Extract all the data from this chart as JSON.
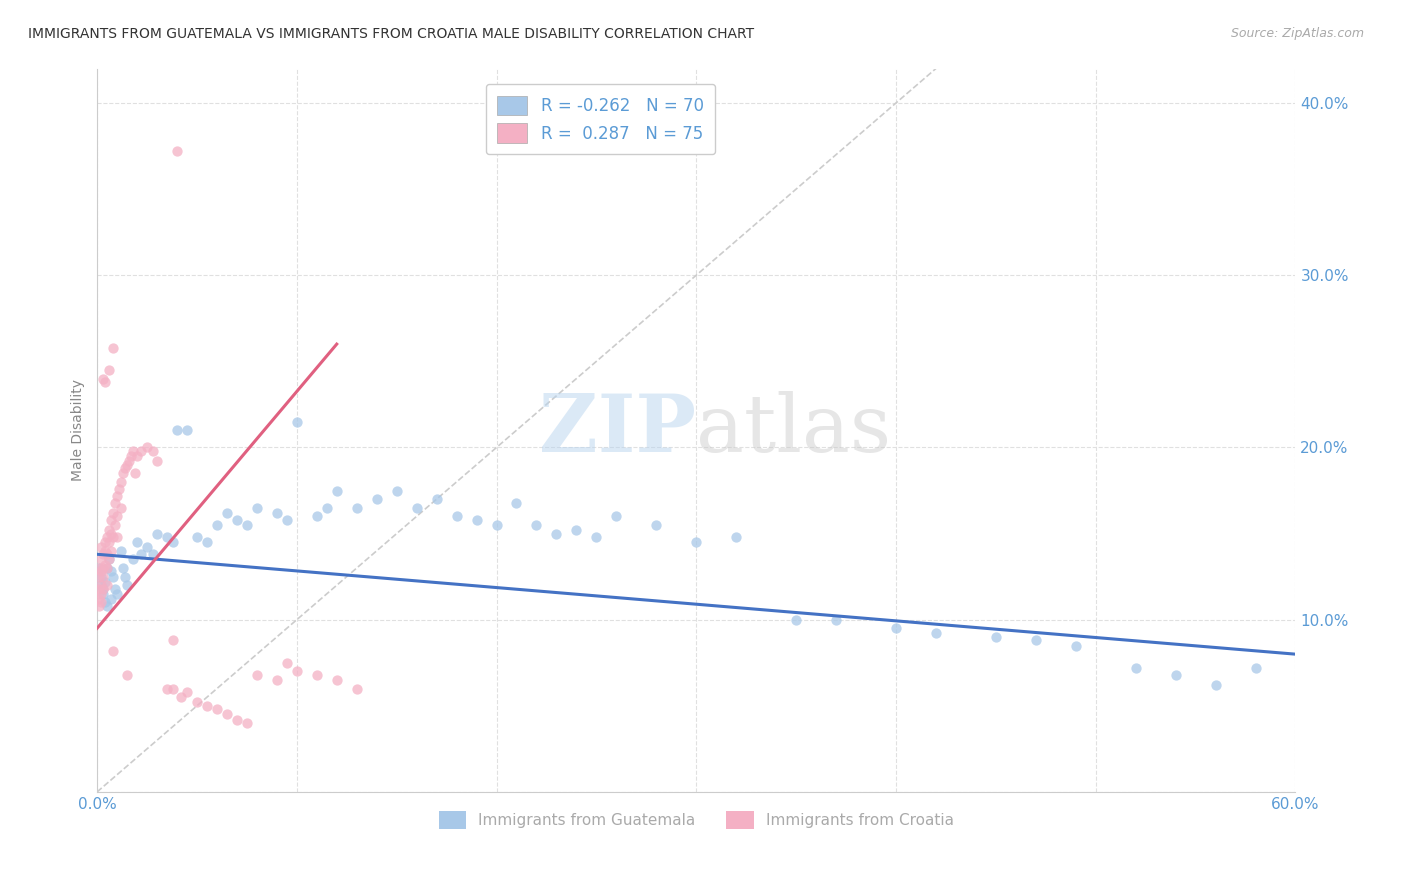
{
  "title": "IMMIGRANTS FROM GUATEMALA VS IMMIGRANTS FROM CROATIA MALE DISABILITY CORRELATION CHART",
  "source": "Source: ZipAtlas.com",
  "ylabel": "Male Disability",
  "xlim": [
    0.0,
    0.6
  ],
  "ylim": [
    0.0,
    0.42
  ],
  "xticks": [
    0.0,
    0.1,
    0.2,
    0.3,
    0.4,
    0.5,
    0.6
  ],
  "xtick_labels": [
    "0.0%",
    "",
    "",
    "",
    "",
    "",
    "60.0%"
  ],
  "yticks": [
    0.0,
    0.1,
    0.2,
    0.3,
    0.4
  ],
  "ytick_labels": [
    "",
    "10.0%",
    "20.0%",
    "30.0%",
    "40.0%"
  ],
  "guatemala_color": "#a8c8e8",
  "croatia_color": "#f4b0c4",
  "guatemala_line_color": "#4472c4",
  "croatia_line_color": "#e06080",
  "R_guatemala": -0.262,
  "N_guatemala": 70,
  "R_croatia": 0.287,
  "N_croatia": 75,
  "watermark_zip": "ZIP",
  "watermark_atlas": "atlas",
  "legend_guatemala": "Immigrants from Guatemala",
  "legend_croatia": "Immigrants from Croatia",
  "axis_label_color": "#5b9bd5",
  "tick_label_color": "#5b9bd5",
  "grid_color": "#e0e0e0",
  "ylabel_color": "#888888",
  "title_color": "#333333",
  "source_color": "#aaaaaa",
  "legend_text_color": "#5b9bd5",
  "bottom_legend_color": "#aaaaaa",
  "scatter_size": 55,
  "scatter_alpha": 0.75,
  "guatemala_points_x": [
    0.001,
    0.002,
    0.002,
    0.003,
    0.003,
    0.004,
    0.004,
    0.005,
    0.005,
    0.006,
    0.007,
    0.007,
    0.008,
    0.009,
    0.01,
    0.012,
    0.013,
    0.014,
    0.015,
    0.018,
    0.02,
    0.022,
    0.025,
    0.028,
    0.03,
    0.035,
    0.038,
    0.04,
    0.045,
    0.05,
    0.055,
    0.06,
    0.065,
    0.07,
    0.075,
    0.08,
    0.09,
    0.095,
    0.1,
    0.11,
    0.115,
    0.12,
    0.13,
    0.14,
    0.15,
    0.16,
    0.17,
    0.18,
    0.19,
    0.2,
    0.21,
    0.22,
    0.23,
    0.24,
    0.25,
    0.26,
    0.28,
    0.3,
    0.32,
    0.35,
    0.37,
    0.4,
    0.42,
    0.45,
    0.47,
    0.49,
    0.52,
    0.54,
    0.56,
    0.58
  ],
  "guatemala_points_y": [
    0.13,
    0.125,
    0.12,
    0.115,
    0.118,
    0.122,
    0.11,
    0.108,
    0.13,
    0.135,
    0.112,
    0.128,
    0.125,
    0.118,
    0.115,
    0.14,
    0.13,
    0.125,
    0.12,
    0.135,
    0.145,
    0.138,
    0.142,
    0.138,
    0.15,
    0.148,
    0.145,
    0.21,
    0.21,
    0.148,
    0.145,
    0.155,
    0.162,
    0.158,
    0.155,
    0.165,
    0.162,
    0.158,
    0.215,
    0.16,
    0.165,
    0.175,
    0.165,
    0.17,
    0.175,
    0.165,
    0.17,
    0.16,
    0.158,
    0.155,
    0.168,
    0.155,
    0.15,
    0.152,
    0.148,
    0.16,
    0.155,
    0.145,
    0.148,
    0.1,
    0.1,
    0.095,
    0.092,
    0.09,
    0.088,
    0.085,
    0.072,
    0.068,
    0.062,
    0.072
  ],
  "croatia_points_x": [
    0.001,
    0.001,
    0.001,
    0.001,
    0.001,
    0.002,
    0.002,
    0.002,
    0.002,
    0.002,
    0.002,
    0.003,
    0.003,
    0.003,
    0.003,
    0.004,
    0.004,
    0.004,
    0.005,
    0.005,
    0.005,
    0.005,
    0.006,
    0.006,
    0.006,
    0.007,
    0.007,
    0.007,
    0.008,
    0.008,
    0.009,
    0.009,
    0.01,
    0.01,
    0.01,
    0.011,
    0.012,
    0.012,
    0.013,
    0.014,
    0.015,
    0.016,
    0.017,
    0.018,
    0.019,
    0.02,
    0.022,
    0.025,
    0.028,
    0.03,
    0.035,
    0.038,
    0.042,
    0.045,
    0.05,
    0.055,
    0.06,
    0.065,
    0.07,
    0.075,
    0.08,
    0.09,
    0.095,
    0.1,
    0.11,
    0.12,
    0.13,
    0.04,
    0.008,
    0.006,
    0.003,
    0.004,
    0.015,
    0.008,
    0.038
  ],
  "croatia_points_y": [
    0.13,
    0.125,
    0.118,
    0.112,
    0.108,
    0.135,
    0.128,
    0.12,
    0.115,
    0.11,
    0.142,
    0.138,
    0.13,
    0.125,
    0.118,
    0.145,
    0.14,
    0.132,
    0.148,
    0.138,
    0.13,
    0.12,
    0.152,
    0.145,
    0.135,
    0.158,
    0.15,
    0.14,
    0.162,
    0.148,
    0.168,
    0.155,
    0.172,
    0.16,
    0.148,
    0.176,
    0.18,
    0.165,
    0.185,
    0.188,
    0.19,
    0.192,
    0.195,
    0.198,
    0.185,
    0.195,
    0.198,
    0.2,
    0.198,
    0.192,
    0.06,
    0.06,
    0.055,
    0.058,
    0.052,
    0.05,
    0.048,
    0.045,
    0.042,
    0.04,
    0.068,
    0.065,
    0.075,
    0.07,
    0.068,
    0.065,
    0.06,
    0.372,
    0.258,
    0.245,
    0.24,
    0.238,
    0.068,
    0.082,
    0.088
  ],
  "guat_line_x": [
    0.0,
    0.6
  ],
  "guat_line_y": [
    0.138,
    0.08
  ],
  "croat_line_x": [
    0.0,
    0.12
  ],
  "croat_line_y": [
    0.095,
    0.26
  ],
  "diag_line_x": [
    0.0,
    0.42
  ],
  "diag_line_y": [
    0.0,
    0.42
  ]
}
